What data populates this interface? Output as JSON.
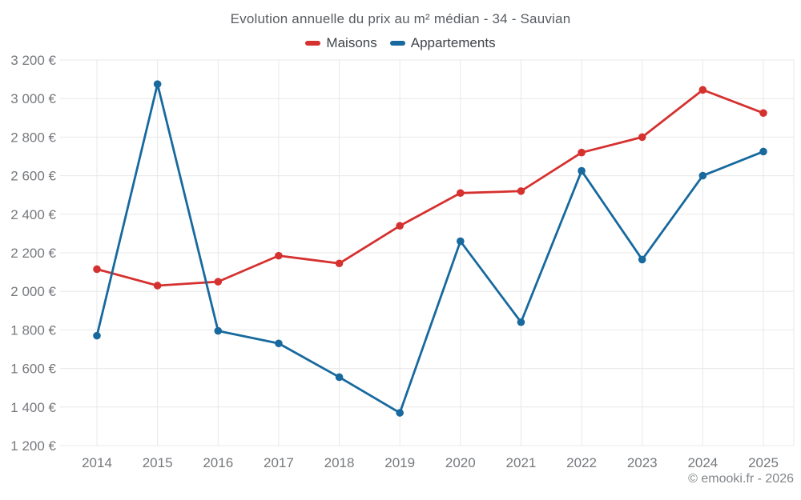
{
  "footer": {
    "attribution": "© emooki.fr - 2026"
  },
  "chart_data": {
    "type": "line",
    "title": "Evolution annuelle du prix au m² médian - 34 - Sauvian",
    "categories": [
      "2014",
      "2015",
      "2016",
      "2017",
      "2018",
      "2019",
      "2020",
      "2021",
      "2022",
      "2023",
      "2024",
      "2025"
    ],
    "series": [
      {
        "name": "Maisons",
        "color": "#d5312f",
        "values": [
          2115,
          2030,
          2050,
          2185,
          2145,
          2340,
          2510,
          2520,
          2720,
          2800,
          3045,
          2925
        ]
      },
      {
        "name": "Appartements",
        "color": "#17699e",
        "values": [
          1770,
          3075,
          1795,
          1730,
          1555,
          1370,
          2260,
          1840,
          2625,
          2165,
          2600,
          2725
        ]
      }
    ],
    "ylim": [
      1200,
      3200
    ],
    "y_tick_step": 200,
    "y_ticks": [
      {
        "value": 1200,
        "label": "1 200 €"
      },
      {
        "value": 1400,
        "label": "1 400 €"
      },
      {
        "value": 1600,
        "label": "1 600 €"
      },
      {
        "value": 1800,
        "label": "1 800 €"
      },
      {
        "value": 2000,
        "label": "2 000 €"
      },
      {
        "value": 2200,
        "label": "2 200 €"
      },
      {
        "value": 2400,
        "label": "2 400 €"
      },
      {
        "value": 2600,
        "label": "2 600 €"
      },
      {
        "value": 2800,
        "label": "2 800 €"
      },
      {
        "value": 3000,
        "label": "3 000 €"
      },
      {
        "value": 3200,
        "label": "3 200 €"
      }
    ],
    "grid": true,
    "legend_position": "top",
    "xlabel": "",
    "ylabel": ""
  }
}
